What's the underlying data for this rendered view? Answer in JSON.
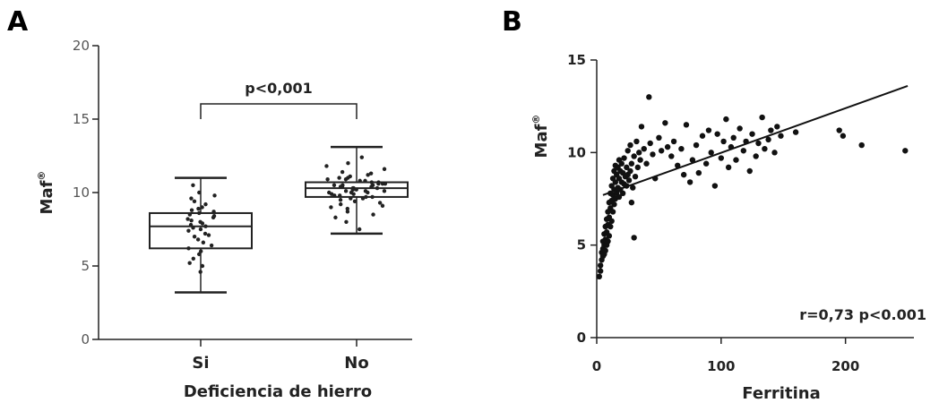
{
  "chart_data": [
    {
      "panel": "A",
      "type": "box",
      "categories": [
        "Si",
        "No"
      ],
      "xlabel": "Deficiencia de hierro",
      "ylabel": "Maf",
      "ylabel_sup": "®",
      "ylim": [
        0,
        20
      ],
      "yticks": [
        "0",
        "5",
        "10",
        "15",
        "20"
      ],
      "annotation": "p<0,001",
      "boxes": [
        {
          "category": "Si",
          "min": 3.2,
          "q1": 6.2,
          "median": 7.7,
          "q3": 8.6,
          "max": 11.0
        },
        {
          "category": "No",
          "min": 7.2,
          "q1": 9.7,
          "median": 10.3,
          "q3": 10.7,
          "max": 13.1
        }
      ],
      "points": {
        "Si": [
          4.6,
          5.0,
          5.2,
          5.5,
          5.8,
          6.0,
          6.2,
          6.4,
          6.6,
          6.8,
          7.0,
          7.1,
          7.2,
          7.4,
          7.5,
          7.6,
          7.7,
          7.8,
          7.9,
          8.0,
          8.1,
          8.2,
          8.3,
          8.4,
          8.5,
          8.6,
          8.7,
          8.8,
          8.9,
          9.0,
          9.2,
          9.4,
          9.6,
          9.8,
          10.0,
          10.5
        ],
        "No": [
          7.5,
          8.0,
          8.3,
          8.5,
          8.7,
          8.9,
          9.0,
          9.1,
          9.2,
          9.3,
          9.4,
          9.5,
          9.6,
          9.6,
          9.7,
          9.7,
          9.8,
          9.8,
          9.9,
          9.9,
          10.0,
          10.0,
          10.0,
          10.1,
          10.1,
          10.1,
          10.2,
          10.2,
          10.2,
          10.3,
          10.3,
          10.3,
          10.4,
          10.4,
          10.4,
          10.5,
          10.5,
          10.5,
          10.6,
          10.6,
          10.6,
          10.7,
          10.7,
          10.8,
          10.8,
          10.9,
          10.9,
          11.0,
          11.0,
          11.1,
          11.2,
          11.3,
          11.4,
          11.6,
          11.8,
          12.0,
          12.4
        ]
      }
    },
    {
      "panel": "B",
      "type": "scatter",
      "xlabel": "Ferritina",
      "ylabel": "Maf",
      "ylabel_sup": "®",
      "xlim": [
        0,
        255
      ],
      "ylim": [
        0,
        15
      ],
      "xticks": [
        "0",
        "100",
        "200"
      ],
      "yticks": [
        "0",
        "5",
        "10",
        "15"
      ],
      "annotation": "r=0,73   p<0.001",
      "trendline": {
        "x": [
          5,
          250
        ],
        "y": [
          7.7,
          13.6
        ]
      },
      "points": [
        [
          2,
          3.3
        ],
        [
          3,
          3.6
        ],
        [
          3,
          3.9
        ],
        [
          4,
          4.2
        ],
        [
          4,
          4.6
        ],
        [
          5,
          4.4
        ],
        [
          5,
          4.8
        ],
        [
          5,
          5.2
        ],
        [
          6,
          4.5
        ],
        [
          6,
          5.0
        ],
        [
          6,
          5.6
        ],
        [
          7,
          4.7
        ],
        [
          7,
          5.3
        ],
        [
          7,
          6.0
        ],
        [
          8,
          5.0
        ],
        [
          8,
          5.7
        ],
        [
          8,
          6.4
        ],
        [
          9,
          5.2
        ],
        [
          9,
          6.1
        ],
        [
          9,
          6.8
        ],
        [
          10,
          5.5
        ],
        [
          10,
          6.5
        ],
        [
          10,
          7.3
        ],
        [
          11,
          6.0
        ],
        [
          11,
          7.0
        ],
        [
          11,
          7.8
        ],
        [
          12,
          6.3
        ],
        [
          12,
          7.4
        ],
        [
          12,
          8.2
        ],
        [
          13,
          6.8
        ],
        [
          13,
          7.7
        ],
        [
          13,
          8.6
        ],
        [
          14,
          7.2
        ],
        [
          14,
          8.0
        ],
        [
          14,
          9.0
        ],
        [
          15,
          7.5
        ],
        [
          15,
          8.4
        ],
        [
          15,
          9.3
        ],
        [
          16,
          7.8
        ],
        [
          16,
          8.8
        ],
        [
          17,
          8.1
        ],
        [
          17,
          9.2
        ],
        [
          18,
          7.6
        ],
        [
          18,
          8.6
        ],
        [
          18,
          9.6
        ],
        [
          19,
          8.0
        ],
        [
          19,
          9.0
        ],
        [
          20,
          8.4
        ],
        [
          20,
          9.4
        ],
        [
          21,
          7.8
        ],
        [
          21,
          8.9
        ],
        [
          22,
          8.3
        ],
        [
          22,
          9.7
        ],
        [
          23,
          8.7
        ],
        [
          24,
          8.2
        ],
        [
          24,
          9.2
        ],
        [
          25,
          8.8
        ],
        [
          25,
          10.1
        ],
        [
          26,
          8.5
        ],
        [
          27,
          9.0
        ],
        [
          27,
          10.4
        ],
        [
          28,
          7.3
        ],
        [
          28,
          9.4
        ],
        [
          29,
          8.1
        ],
        [
          30,
          5.4
        ],
        [
          30,
          9.8
        ],
        [
          31,
          8.7
        ],
        [
          32,
          10.6
        ],
        [
          33,
          9.2
        ],
        [
          34,
          10.0
        ],
        [
          35,
          9.6
        ],
        [
          36,
          11.4
        ],
        [
          38,
          10.2
        ],
        [
          40,
          9.4
        ],
        [
          42,
          13.0
        ],
        [
          43,
          10.5
        ],
        [
          45,
          9.9
        ],
        [
          47,
          8.6
        ],
        [
          50,
          10.8
        ],
        [
          52,
          10.1
        ],
        [
          55,
          11.6
        ],
        [
          57,
          10.3
        ],
        [
          60,
          9.8
        ],
        [
          62,
          10.6
        ],
        [
          65,
          9.3
        ],
        [
          68,
          10.2
        ],
        [
          70,
          8.8
        ],
        [
          72,
          11.5
        ],
        [
          75,
          8.4
        ],
        [
          77,
          9.6
        ],
        [
          80,
          10.4
        ],
        [
          82,
          8.9
        ],
        [
          85,
          10.9
        ],
        [
          88,
          9.4
        ],
        [
          90,
          11.2
        ],
        [
          92,
          10.0
        ],
        [
          95,
          8.2
        ],
        [
          97,
          11.0
        ],
        [
          100,
          9.7
        ],
        [
          102,
          10.6
        ],
        [
          104,
          11.8
        ],
        [
          106,
          9.2
        ],
        [
          108,
          10.3
        ],
        [
          110,
          10.8
        ],
        [
          112,
          9.6
        ],
        [
          115,
          11.3
        ],
        [
          118,
          10.1
        ],
        [
          120,
          10.6
        ],
        [
          123,
          9.0
        ],
        [
          125,
          11.0
        ],
        [
          128,
          9.8
        ],
        [
          130,
          10.5
        ],
        [
          133,
          11.9
        ],
        [
          135,
          10.2
        ],
        [
          138,
          10.7
        ],
        [
          140,
          11.2
        ],
        [
          143,
          10.0
        ],
        [
          145,
          11.4
        ],
        [
          148,
          10.9
        ],
        [
          160,
          11.1
        ],
        [
          195,
          11.2
        ],
        [
          198,
          10.9
        ],
        [
          213,
          10.4
        ],
        [
          248,
          10.1
        ]
      ]
    }
  ]
}
